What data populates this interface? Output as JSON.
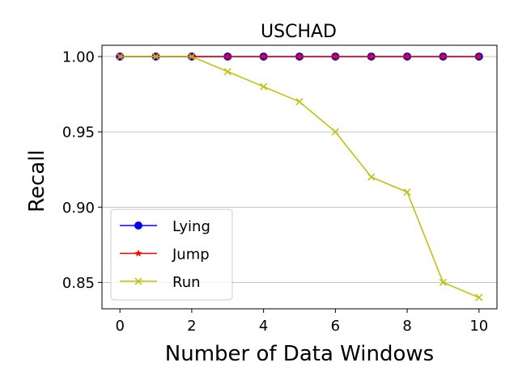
{
  "chart_data": {
    "type": "line",
    "title": "USCHAD",
    "xlabel": "Number of Data Windows",
    "ylabel": "Recall",
    "x": [
      0,
      1,
      2,
      3,
      4,
      5,
      6,
      7,
      8,
      9,
      10
    ],
    "xlim": [
      -0.5,
      10.5
    ],
    "ylim": [
      0.8325,
      1.0075
    ],
    "xticks": [
      0,
      2,
      4,
      6,
      8,
      10
    ],
    "yticks": [
      0.85,
      0.9,
      0.95,
      1.0
    ],
    "ytick_labels": [
      "0.85",
      "0.90",
      "0.95",
      "1.00"
    ],
    "grid": "y",
    "legend_position": "lower-left",
    "series": [
      {
        "name": "Lying",
        "color": "#0000ff",
        "marker": "circle",
        "values": [
          1.0,
          1.0,
          1.0,
          1.0,
          1.0,
          1.0,
          1.0,
          1.0,
          1.0,
          1.0,
          1.0
        ]
      },
      {
        "name": "Jump",
        "color": "#ff0000",
        "marker": "star",
        "values": [
          1.0,
          1.0,
          1.0,
          1.0,
          1.0,
          1.0,
          1.0,
          1.0,
          1.0,
          1.0,
          1.0
        ]
      },
      {
        "name": "Run",
        "color": "#bfbf00",
        "marker": "x",
        "values": [
          1.0,
          1.0,
          1.0,
          0.99,
          0.98,
          0.97,
          0.95,
          0.92,
          0.91,
          0.85,
          0.84
        ]
      }
    ]
  }
}
